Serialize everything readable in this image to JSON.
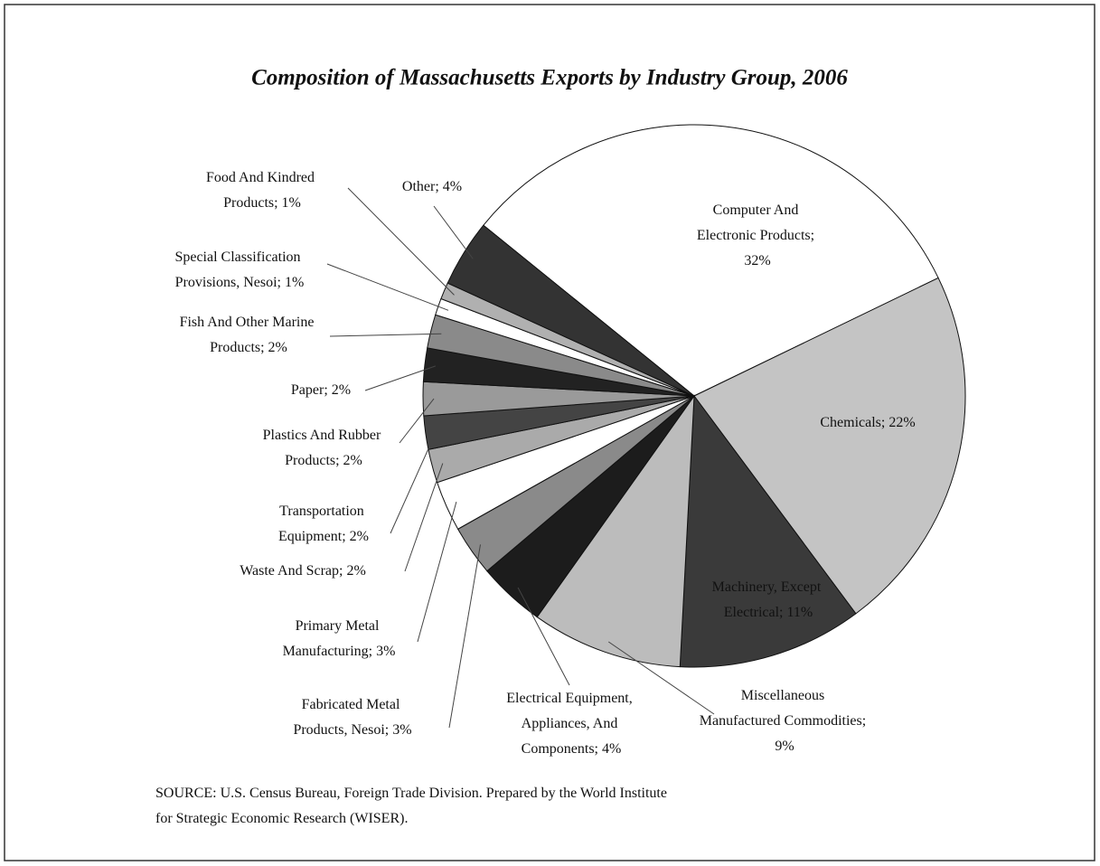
{
  "chart_data": {
    "type": "pie",
    "title": "Composition of Massachusetts Exports by Industry Group, 2006",
    "values": [
      32,
      22,
      11,
      9,
      4,
      3,
      3,
      2,
      2,
      2,
      2,
      2,
      1,
      1,
      4
    ],
    "value_labels": [
      "Computer And Electronic Products; 32%",
      "Chemicals; 22%",
      "Machinery, Except Electrical; 11%",
      "Miscellaneous Manufactured Commodities; 9%",
      "Electrical Equipment, Appliances, And Components; 4%",
      "Fabricated Metal Products, Nesoi; 3%",
      "Primary Metal Manufacturing; 3%",
      "Waste And Scrap; 2%",
      "Transportation Equipment; 2%",
      "Plastics And Rubber Products; 2%",
      "Paper; 2%",
      "Fish And Other Marine Products; 2%",
      "Special Classification Provisions, Nesoi; 1%",
      "Food And Kindred Products; 1%",
      "Other; 4%"
    ],
    "colors": [
      "#ffffff",
      "#c4c4c4",
      "#3a3a3a",
      "#bcbcbc",
      "#1c1c1c",
      "#8a8a8a",
      "#ffffff",
      "#aaaaaa",
      "#444444",
      "#9a9a9a",
      "#222222",
      "#8a8a8a",
      "#ffffff",
      "#b0b0b0",
      "#333333"
    ],
    "source": "SOURCE: U.S. Census Bureau, Foreign Trade Division. Prepared by the World Institute for Strategic Economic Research (WISER)."
  }
}
